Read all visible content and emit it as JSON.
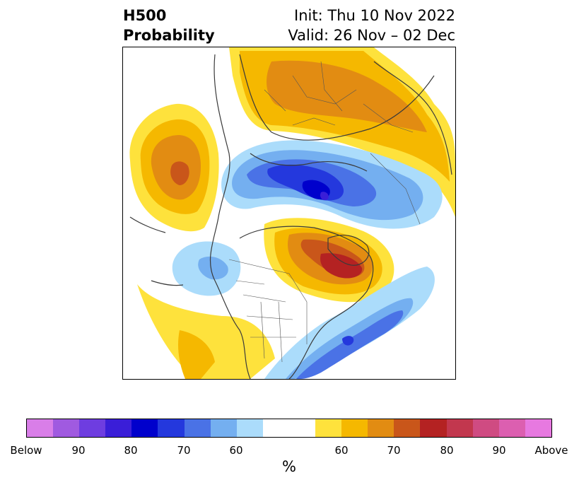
{
  "header": {
    "title_line1": "H500",
    "title_line2": "Probability",
    "init_text": "Init: Thu 10 Nov 2022",
    "valid_text": "Valid: 26 Nov – 02 Dec"
  },
  "colorbar": {
    "unit": "%",
    "tick_labels": [
      "Below",
      "90",
      "80",
      "70",
      "60",
      "60",
      "70",
      "80",
      "90",
      "Above"
    ],
    "colors": [
      "#d97ee8",
      "#a05ae0",
      "#6e3de0",
      "#3a1ed8",
      "#0000cc",
      "#2438dd",
      "#4a72e6",
      "#74aff0",
      "#abdcfb",
      "#ffffff",
      "#fee23c",
      "#f5b800",
      "#e28c12",
      "#c9561a",
      "#b42222",
      "#c2374e",
      "#cf4b82",
      "#dc5fb0",
      "#e779e0"
    ]
  },
  "map": {
    "projection": "north-polar-stereographic",
    "features": [
      "coastlines",
      "country-borders",
      "state-borders"
    ]
  }
}
